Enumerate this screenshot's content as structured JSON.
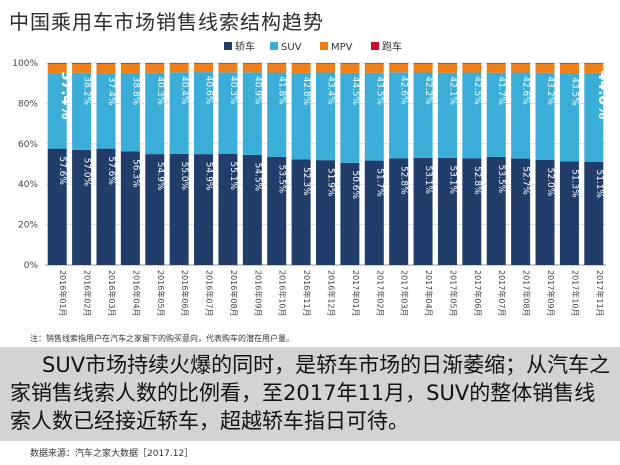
{
  "title": "中国乘用车市场销售线索结构趋势",
  "note": "注：销售线索指用户在汽车之家留下的购买意向，代表购车的潜在用户量。",
  "summary": "SUV市场持续火爆的同时，是轿车市场的日渐萎缩；从汽车之家销售线索人数的比例看，至2017年11月，SUV的整体销售线索人数已经接近轿车，超越轿车指日可待。",
  "source": "数据来源：汽车之家大数据［2017.12］",
  "colors": {
    "sedan": "#233d6b",
    "suv": "#3aaed8",
    "mpv": "#f07f1a",
    "sports": "#c8102e"
  },
  "chart_data": {
    "type": "bar",
    "stacked": true,
    "title": "中国乘用车市场销售线索结构趋势",
    "categories": [
      "2016年01月",
      "2016年02月",
      "2016年03月",
      "2016年04月",
      "2016年05月",
      "2016年06月",
      "2016年07月",
      "2016年08月",
      "2016年09月",
      "2016年10月",
      "2016年11月",
      "2016年12月",
      "2017年01月",
      "2017年02月",
      "2017年03月",
      "2017年04月",
      "2017年05月",
      "2017年06月",
      "2017年07月",
      "2017年08月",
      "2017年09月",
      "2017年10月",
      "2017年11月"
    ],
    "y_ticks": [
      "0%",
      "20%",
      "40%",
      "60%",
      "80%",
      "100%"
    ],
    "ylim": [
      0,
      100
    ],
    "legend": [
      "轿车",
      "SUV",
      "MPV",
      "跑车"
    ],
    "series": [
      {
        "name": "轿车",
        "values": [
          57.6,
          57.0,
          57.6,
          56.3,
          54.9,
          55.0,
          54.9,
          55.1,
          54.5,
          53.5,
          52.3,
          51.9,
          50.6,
          51.7,
          52.8,
          53.1,
          53.1,
          52.8,
          53.5,
          52.7,
          52.0,
          51.3,
          51.1
        ],
        "labels": [
          "57.6%",
          "57.0%",
          "57.6%",
          "56.3%",
          "54.9%",
          "55.0%",
          "54.9%",
          "55.1%",
          "54.5%",
          "53.5%",
          "52.3%",
          "51.9%",
          "50.6%",
          "51.7%",
          "52.8%",
          "53.1%",
          "53.1%",
          "52.8%",
          "53.5%",
          "52.7%",
          "52.0%",
          "51.3%",
          "51.1%"
        ]
      },
      {
        "name": "SUV",
        "values": [
          37.4,
          38.2,
          37.4,
          38.8,
          40.3,
          40.4,
          40.6,
          40.3,
          40.9,
          41.8,
          42.8,
          43.4,
          44.5,
          43.5,
          42.6,
          42.2,
          42.1,
          42.5,
          41.7,
          42.6,
          43.2,
          43.5,
          44.0
        ],
        "labels": [
          "37.4%",
          "38.2%",
          "37.4%",
          "38.8%",
          "40.3%",
          "40.4%",
          "40.6%",
          "40.3%",
          "40.9%",
          "41.8%",
          "42.8%",
          "43.4%",
          "44.5%",
          "43.5%",
          "42.6%",
          "42.2%",
          "42.1%",
          "42.5%",
          "41.7%",
          "42.6%",
          "43.2%",
          "43.5%",
          "44.0%"
        ]
      },
      {
        "name": "MPV",
        "values": [
          4.6,
          4.4,
          4.6,
          4.5,
          4.4,
          4.3,
          4.2,
          4.3,
          4.3,
          4.4,
          4.6,
          4.4,
          4.6,
          4.5,
          4.3,
          4.4,
          4.5,
          4.4,
          4.5,
          4.4,
          4.5,
          4.9,
          4.6
        ]
      },
      {
        "name": "跑车",
        "values": [
          0.4,
          0.4,
          0.4,
          0.4,
          0.4,
          0.3,
          0.3,
          0.3,
          0.3,
          0.3,
          0.3,
          0.3,
          0.3,
          0.3,
          0.3,
          0.3,
          0.3,
          0.3,
          0.3,
          0.3,
          0.3,
          0.3,
          0.3
        ]
      }
    ]
  }
}
